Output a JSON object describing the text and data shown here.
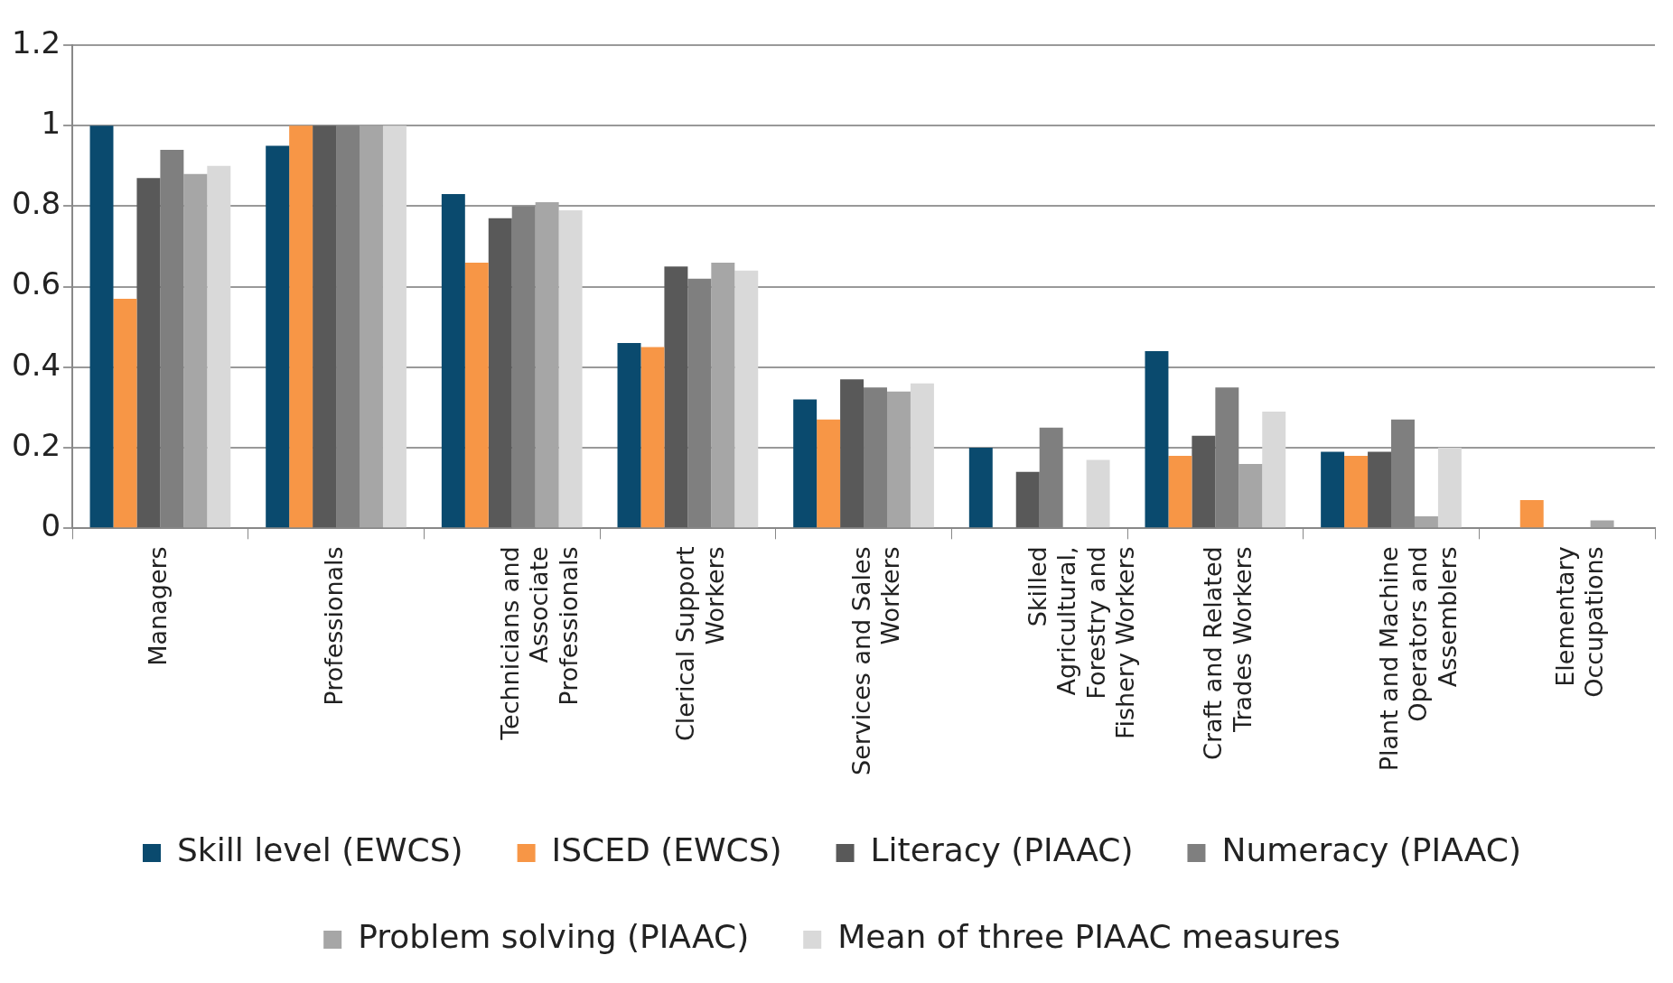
{
  "chart_data": {
    "type": "bar",
    "categories": [
      "Managers",
      "Professionals",
      "Technicians and Associate Professionals",
      "Clerical Support Workers",
      "Services and Sales Workers",
      "Skilled Agricultural, Forestry and Fishery Workers",
      "Craft and Related Trades Workers",
      "Plant and Machine Operators and Assemblers",
      "Elementary Occupations"
    ],
    "series": [
      {
        "name": "Skill level (EWCS)",
        "color": "#0a4a6e",
        "values": [
          1,
          0.95,
          0.83,
          0.46,
          0.32,
          0.2,
          0.44,
          0.19,
          null
        ]
      },
      {
        "name": "ISCED (EWCS)",
        "color": "#f79646",
        "values": [
          0.57,
          1,
          0.66,
          0.45,
          0.27,
          null,
          0.18,
          0.18,
          0.07
        ]
      },
      {
        "name": "Literacy (PIAAC)",
        "color": "#595959",
        "values": [
          0.87,
          1,
          0.77,
          0.65,
          0.37,
          0.14,
          0.23,
          0.19,
          null
        ]
      },
      {
        "name": "Numeracy (PIAAC)",
        "color": "#7f7f7f",
        "values": [
          0.94,
          1,
          0.8,
          0.62,
          0.35,
          0.25,
          0.35,
          0.27,
          null
        ]
      },
      {
        "name": "Problem solving (PIAAC)",
        "color": "#a6a6a6",
        "values": [
          0.88,
          1,
          0.81,
          0.66,
          0.34,
          null,
          0.16,
          0.03,
          0.02
        ]
      },
      {
        "name": "Mean of three PIAAC measures",
        "color": "#d9d9d9",
        "values": [
          0.9,
          1,
          0.79,
          0.64,
          0.36,
          0.17,
          0.29,
          0.2,
          null
        ]
      }
    ],
    "ylim": [
      0,
      1.2
    ],
    "yticks": [
      0,
      0.2,
      0.4,
      0.6,
      0.8,
      1,
      1.2
    ],
    "grid": "y",
    "legend": "bottom"
  }
}
